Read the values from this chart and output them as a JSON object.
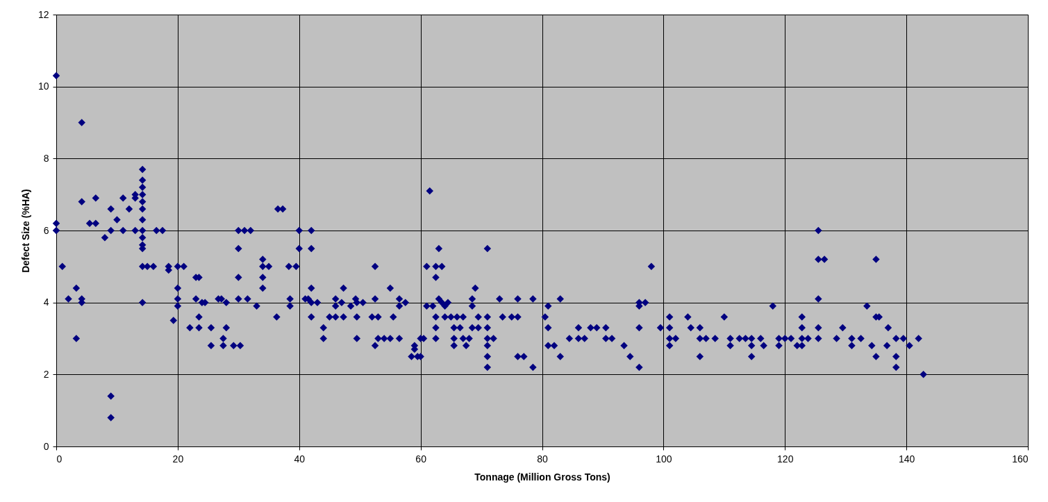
{
  "chart_data": {
    "type": "scatter",
    "xlabel": "Tonnage (Million Gross Tons)",
    "ylabel": "Defect Size (%HA)",
    "marker": "diamond",
    "grid": true,
    "xlim": [
      0,
      160
    ],
    "xticks": [
      0,
      20,
      40,
      60,
      80,
      100,
      120,
      140,
      160
    ],
    "ylim": [
      0,
      12
    ],
    "yticks": [
      0,
      2,
      4,
      6,
      8,
      10,
      12
    ],
    "series": [
      {
        "color": "#000080",
        "x": [
          0,
          0,
          0,
          1,
          2,
          3.3,
          3.3,
          4.2,
          4.2,
          4.2,
          4.2,
          5.5,
          6.5,
          6.5,
          8,
          9,
          9,
          9,
          9,
          10,
          11,
          11,
          12,
          13,
          13,
          13,
          14.2,
          14.2,
          14.2,
          14.2,
          14.2,
          14.2,
          14.2,
          14.2,
          14.2,
          14.2,
          14.2,
          14.2,
          14.2,
          15,
          16,
          16.5,
          17.5,
          18.5,
          18.5,
          19.3,
          20,
          20,
          20,
          20,
          21,
          22,
          23,
          23,
          23.5,
          23.5,
          23.5,
          24,
          24.5,
          25.5,
          25.5,
          26.7,
          27.2,
          27.5,
          27.5,
          28,
          28,
          29.2,
          30,
          30,
          30,
          30,
          30.3,
          31,
          31.5,
          32,
          33,
          34,
          34,
          34,
          34,
          35,
          36.3,
          36.5,
          37.3,
          38.3,
          38.5,
          38.5,
          39.5,
          40,
          40,
          41,
          41.5,
          42,
          42,
          42,
          42,
          42,
          43,
          44,
          44,
          45,
          46,
          46,
          46,
          47,
          47.3,
          47.3,
          48.5,
          49.3,
          49.5,
          49.5,
          49.5,
          50.5,
          52,
          52.5,
          52.5,
          52.5,
          53,
          53,
          54,
          55,
          55,
          55.5,
          56.5,
          56.5,
          56.5,
          57.5,
          58.5,
          59,
          59,
          59.5,
          60,
          60,
          60.5,
          61,
          61,
          61.5,
          62,
          62.5,
          62.5,
          62.5,
          62.5,
          62.5,
          63,
          63,
          63.5,
          63.5,
          64,
          64,
          64.5,
          65,
          65.5,
          65.5,
          65.5,
          66,
          66.5,
          67,
          67,
          67.5,
          68,
          68.5,
          68.5,
          68.5,
          69,
          69.5,
          69.5,
          71,
          71,
          71,
          71,
          71,
          71,
          71,
          72,
          73,
          73.5,
          75,
          76,
          76,
          76,
          77,
          78.5,
          78.5,
          80.5,
          81,
          81,
          81,
          82,
          83,
          83,
          84.5,
          86,
          86,
          87,
          88,
          89,
          90.5,
          90.5,
          91.5,
          93.5,
          94.5,
          96,
          96,
          96,
          96,
          97,
          98,
          99.5,
          101,
          101,
          101,
          101,
          102,
          104,
          104.5,
          106,
          106,
          106,
          107,
          108.5,
          110,
          111,
          111,
          112.5,
          113.5,
          114.5,
          114.5,
          114.5,
          116,
          116.5,
          118,
          119,
          119,
          120,
          121,
          122,
          122.8,
          122.8,
          122.8,
          122.8,
          123.8,
          125.5,
          125.5,
          125.5,
          125.5,
          125.5,
          126.5,
          128.5,
          129.5,
          131,
          131,
          132.5,
          133.5,
          134.3,
          135,
          135,
          135,
          135.5,
          136.8,
          137,
          138.3,
          138.3,
          138.3,
          139.5,
          140.5,
          142,
          142.8
        ],
        "values": [
          10.3,
          6.2,
          6.0,
          5.0,
          4.1,
          4.4,
          3.0,
          9.0,
          6.8,
          4.1,
          4.0,
          6.2,
          6.9,
          6.2,
          5.8,
          6.6,
          6.0,
          1.4,
          0.8,
          6.3,
          6.9,
          6.0,
          6.6,
          7.0,
          6.9,
          6.0,
          7.7,
          7.4,
          7.2,
          7.0,
          6.8,
          6.6,
          6.3,
          6.0,
          5.8,
          5.6,
          5.5,
          5.0,
          4.0,
          5.0,
          5.0,
          6.0,
          6.0,
          5.0,
          4.9,
          3.5,
          5.0,
          4.4,
          4.1,
          3.9,
          5.0,
          3.3,
          4.7,
          4.1,
          4.7,
          3.6,
          3.3,
          4.0,
          4.0,
          3.3,
          2.8,
          4.1,
          4.1,
          3.0,
          2.8,
          4.0,
          3.3,
          2.8,
          6.0,
          5.5,
          4.7,
          4.1,
          2.8,
          6.0,
          4.1,
          6.0,
          3.9,
          5.2,
          5.0,
          4.7,
          4.4,
          5.0,
          3.6,
          6.6,
          6.6,
          5.0,
          4.1,
          3.9,
          5.0,
          6.0,
          5.5,
          4.1,
          4.1,
          6.0,
          5.5,
          4.4,
          3.6,
          4.0,
          4.0,
          3.3,
          3.0,
          3.6,
          4.1,
          3.9,
          3.6,
          4.0,
          4.4,
          3.6,
          3.9,
          4.1,
          3.6,
          3.0,
          4.0,
          4.0,
          3.6,
          4.1,
          5.0,
          2.8,
          3.0,
          3.6,
          3.0,
          4.4,
          3.0,
          3.6,
          4.1,
          3.9,
          3.0,
          4.0,
          2.5,
          2.8,
          2.7,
          2.5,
          3.0,
          2.5,
          3.0,
          5.0,
          3.9,
          7.1,
          3.9,
          5.0,
          4.7,
          3.6,
          3.3,
          3.0,
          5.5,
          4.1,
          5.0,
          4.0,
          3.9,
          3.6,
          4.0,
          3.6,
          3.3,
          3.0,
          2.8,
          3.6,
          3.3,
          3.6,
          3.0,
          2.8,
          3.0,
          4.1,
          3.9,
          3.3,
          4.4,
          3.6,
          3.3,
          5.5,
          3.6,
          3.3,
          3.0,
          2.8,
          2.5,
          2.2,
          3.0,
          4.1,
          3.6,
          3.6,
          4.1,
          3.6,
          2.5,
          2.5,
          4.1,
          2.2,
          3.6,
          3.9,
          3.3,
          2.8,
          2.8,
          4.1,
          2.5,
          3.0,
          3.3,
          3.0,
          3.0,
          3.3,
          3.3,
          3.3,
          3.0,
          3.0,
          2.8,
          2.5,
          4.0,
          3.9,
          3.3,
          2.2,
          4.0,
          5.0,
          3.3,
          3.6,
          3.3,
          3.0,
          2.8,
          3.0,
          3.6,
          3.3,
          3.3,
          3.0,
          2.5,
          3.0,
          3.0,
          3.6,
          3.0,
          2.8,
          3.0,
          3.0,
          3.0,
          2.8,
          2.5,
          3.0,
          2.8,
          3.9,
          3.0,
          2.8,
          3.0,
          3.0,
          2.8,
          3.6,
          3.3,
          3.0,
          2.8,
          3.0,
          6.0,
          5.2,
          4.1,
          3.3,
          3.0,
          5.2,
          3.0,
          3.3,
          3.0,
          2.8,
          3.0,
          3.9,
          2.8,
          5.2,
          3.6,
          2.5,
          3.6,
          2.8,
          3.3,
          3.0,
          2.5,
          2.2,
          3.0,
          2.8,
          3.0,
          2.0
        ]
      }
    ]
  }
}
